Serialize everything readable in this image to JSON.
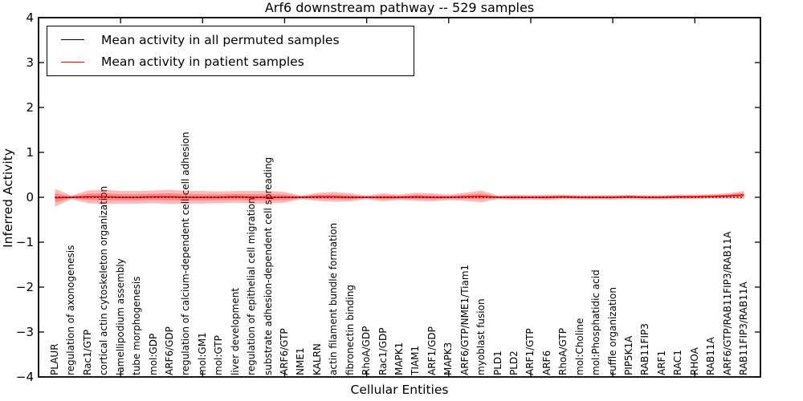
{
  "title": "Arf6 downstream pathway -- 529 samples",
  "axes": {
    "xlabel": "Cellular Entities",
    "ylabel": "Inferred Activity"
  },
  "legend": [
    {
      "label": "Mean activity in all permuted samples",
      "color": "#000000"
    },
    {
      "label": "Mean activity in patient samples",
      "color": "#ff0000"
    }
  ],
  "chart_data": {
    "type": "line",
    "title": "Arf6 downstream pathway -- 529 samples",
    "xlabel": "Cellular Entities",
    "ylabel": "Inferred Activity",
    "ylim": [
      -4,
      4
    ],
    "yticks": [
      -4,
      -3,
      -2,
      -1,
      0,
      1,
      2,
      3,
      4
    ],
    "xticks": [
      5,
      10,
      15,
      20,
      25,
      30,
      35,
      40
    ],
    "grid": false,
    "legend_position": "upper left",
    "categories": [
      "PLAUR",
      "regulation of axonogenesis",
      "Rac1/GTP",
      "cortical actin cytoskeleton organization",
      "lamellipodium assembly",
      "tube morphogenesis",
      "mol:GDP",
      "ARF6/GDP",
      "regulation of calcium-dependent cell-cell adhesion",
      "mol:GM1",
      "mol:GTP",
      "liver development",
      "regulation of epithelial cell migration",
      "substrate adhesion-dependent cell spreading",
      "ARF6/GTP",
      "NME1",
      "KALRN",
      "actin filament bundle formation",
      "fibronectin binding",
      "RhoA/GDP",
      "Rac1/GDP",
      "MAPK1",
      "TIAM1",
      "ARF1/GDP",
      "MAPK3",
      "ARF6/GTP/NME1/Tiam1",
      "myoblast fusion",
      "PLD1",
      "PLD2",
      "ARF1/GTP",
      "ARF6",
      "RhoA/GTP",
      "mol:Choline",
      "mol:Phosphatidic acid",
      "ruffle organization",
      "PIP5K1A",
      "RAB11FIP3",
      "ARF1",
      "RAC1",
      "RHOA",
      "RAB11A",
      "ARF6/GTP/RAB11FIP3/RAB11A",
      "RAB11FIP3/RAB11A"
    ],
    "series": [
      {
        "name": "Mean activity in all permuted samples",
        "color": "#000000",
        "style": "dotted",
        "values": [
          0,
          0,
          0,
          0,
          0,
          0,
          0,
          0,
          0,
          0,
          0,
          0,
          0,
          0,
          0,
          0,
          0,
          0,
          0,
          0,
          0,
          0,
          0,
          0,
          0,
          0,
          0,
          0,
          0,
          0,
          0,
          0,
          0,
          0,
          0,
          0,
          0,
          0,
          0,
          0,
          0,
          0,
          0
        ]
      },
      {
        "name": "Mean activity in patient samples",
        "color": "#ff0000",
        "style": "solid",
        "values": [
          -0.01,
          0,
          0.01,
          0.01,
          0,
          0,
          0.01,
          0.01,
          0,
          0,
          0,
          0.01,
          0,
          0,
          0,
          0,
          0.01,
          0.01,
          0,
          0,
          0,
          0,
          0.01,
          0,
          0,
          0.01,
          0.02,
          0,
          0,
          0,
          0,
          0.01,
          0,
          0,
          0,
          0.01,
          0,
          0,
          0.01,
          0.01,
          0.02,
          0.03,
          0.05
        ]
      }
    ],
    "band_outer_halfwidth": [
      0.2,
      0.04,
      0.14,
      0.16,
      0.14,
      0.14,
      0.14,
      0.16,
      0.14,
      0.14,
      0.13,
      0.13,
      0.14,
      0.14,
      0.12,
      0.04,
      0.09,
      0.11,
      0.09,
      0.04,
      0.09,
      0.06,
      0.09,
      0.09,
      0.06,
      0.09,
      0.13,
      0.04,
      0.06,
      0.05,
      0.06,
      0.05,
      0.05,
      0.05,
      0.05,
      0.05,
      0.05,
      0.05,
      0.05,
      0.05,
      0.05,
      0.06,
      0.09
    ],
    "band_inner_halfwidth": [
      0.1,
      0.02,
      0.07,
      0.08,
      0.07,
      0.07,
      0.07,
      0.08,
      0.07,
      0.07,
      0.065,
      0.065,
      0.07,
      0.07,
      0.06,
      0.02,
      0.045,
      0.055,
      0.045,
      0.02,
      0.045,
      0.03,
      0.045,
      0.045,
      0.03,
      0.045,
      0.065,
      0.02,
      0.03,
      0.025,
      0.03,
      0.025,
      0.025,
      0.025,
      0.025,
      0.025,
      0.025,
      0.025,
      0.025,
      0.025,
      0.025,
      0.03,
      0.045
    ],
    "band_color": "#ff0000",
    "band_opacity": 0.27
  }
}
